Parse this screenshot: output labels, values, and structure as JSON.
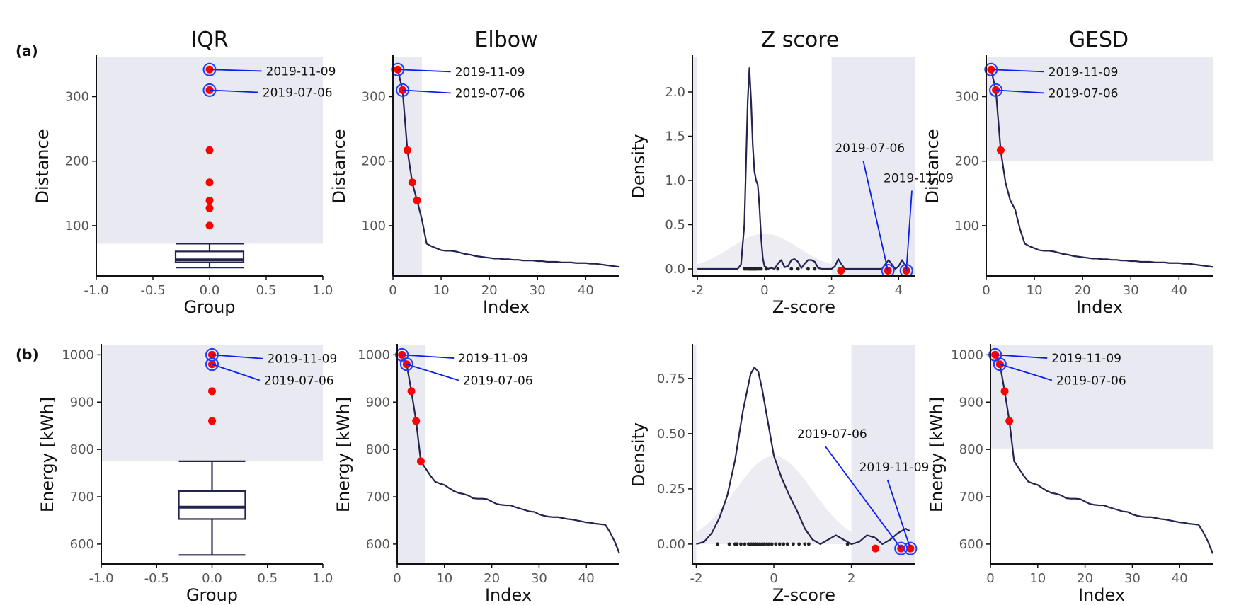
{
  "colors": {
    "shade": "#e9e9f1",
    "line": "#23234f",
    "point": "#ff0000",
    "highlight_ring": "#1f3cff",
    "leader": "#0a1ef0",
    "normal_fill": "#ececf2",
    "axis": "#111111",
    "tick_text": "#555555"
  },
  "column_titles": [
    "IQR",
    "Elbow",
    "Z score",
    "GESD"
  ],
  "row_labels": [
    "(a)",
    "(b)"
  ],
  "chart_data": [
    {
      "id": "a-iqr",
      "type": "box",
      "xlabel": "Group",
      "ylabel": "Distance",
      "xlim": [
        -1,
        1
      ],
      "ylim": [
        22,
        362
      ],
      "xticks": [
        -1.0,
        -0.5,
        0.0,
        0.5,
        1.0
      ],
      "xtick_labels": [
        "-1.0",
        "-0.5",
        "0.0",
        "0.5",
        "1.0"
      ],
      "yticks": [
        100,
        200,
        300
      ],
      "shade": [
        {
          "x": [
            -1,
            1
          ],
          "y": [
            72,
            362
          ]
        }
      ],
      "box": {
        "x": 0,
        "width": 0.6,
        "whisker_low": 35,
        "q1": 43,
        "median": 47,
        "q3": 60,
        "whisker_high": 72
      },
      "outliers": [
        342,
        310,
        217,
        167,
        139,
        127,
        100
      ],
      "highlights": [
        {
          "label": "2019-11-09",
          "y": 342,
          "text_x": 0.46,
          "text_y": 333
        },
        {
          "label": "2019-07-06",
          "y": 310,
          "text_x": 0.43,
          "text_y": 300
        }
      ]
    },
    {
      "id": "a-elbow",
      "type": "line",
      "xlabel": "Index",
      "ylabel": "Distance",
      "xlim": [
        0,
        47
      ],
      "ylim": [
        22,
        362
      ],
      "xticks": [
        0,
        10,
        20,
        30,
        40
      ],
      "yticks": [
        100,
        200,
        300
      ],
      "shade": [
        {
          "x": [
            0,
            6
          ],
          "y": [
            22,
            362
          ]
        }
      ],
      "x": [
        1,
        2,
        3,
        4,
        5,
        6,
        7,
        8,
        9,
        10,
        11,
        12,
        13,
        14,
        15,
        16,
        17,
        18,
        19,
        20,
        21,
        22,
        23,
        24,
        25,
        26,
        27,
        28,
        29,
        30,
        31,
        32,
        33,
        34,
        35,
        36,
        37,
        38,
        39,
        40,
        41,
        42,
        43,
        44,
        45,
        46,
        47
      ],
      "y": [
        342,
        310,
        217,
        167,
        139,
        110,
        72,
        68,
        65,
        62,
        61,
        61,
        60,
        58,
        56,
        55,
        53,
        52,
        51,
        50,
        49,
        49,
        48,
        48,
        47,
        47,
        46,
        46,
        46,
        45,
        45,
        44,
        44,
        44,
        43,
        43,
        43,
        42,
        42,
        42,
        41,
        41,
        40,
        39,
        38,
        37,
        36
      ],
      "points": [
        [
          1,
          342
        ],
        [
          2,
          310
        ],
        [
          3,
          217
        ],
        [
          4,
          167
        ],
        [
          5,
          139
        ]
      ],
      "highlights": [
        {
          "label": "2019-11-09",
          "x": 1,
          "y": 342,
          "text_x": 12,
          "text_y": 332
        },
        {
          "label": "2019-07-06",
          "x": 2,
          "y": 310,
          "text_x": 12,
          "text_y": 299
        }
      ]
    },
    {
      "id": "a-z",
      "type": "density",
      "xlabel": "Z-score",
      "ylabel": "Density",
      "xlim": [
        -2.15,
        4.5
      ],
      "ylim": [
        -0.08,
        2.4
      ],
      "xticks": [
        -2,
        0,
        2,
        4
      ],
      "yticks": [
        0.0,
        0.5,
        1.0,
        1.5,
        2.0
      ],
      "ytick_labels": [
        "0.0",
        "0.5",
        "1.0",
        "1.5",
        "2.0"
      ],
      "shade": [
        {
          "x": [
            -2.15,
            -2.0
          ],
          "y": [
            -0.08,
            2.4
          ]
        },
        {
          "x": [
            2.0,
            4.5
          ],
          "y": [
            -0.08,
            2.4
          ]
        }
      ],
      "density_x": [
        -2.0,
        -1.5,
        -1.0,
        -0.8,
        -0.7,
        -0.6,
        -0.55,
        -0.5,
        -0.45,
        -0.4,
        -0.35,
        -0.3,
        -0.25,
        -0.2,
        -0.15,
        -0.1,
        -0.05,
        0.0,
        0.05,
        0.1,
        0.2,
        0.3,
        0.4,
        0.5,
        0.6,
        0.7,
        0.8,
        0.9,
        1.0,
        1.1,
        1.2,
        1.3,
        1.4,
        1.5,
        1.6,
        1.7,
        1.8,
        1.9,
        2.0,
        2.1,
        2.2,
        2.3,
        2.4,
        2.5,
        3.0,
        3.5,
        3.6,
        3.7,
        3.8,
        3.9,
        4.0,
        4.1,
        4.2,
        4.3
      ],
      "density_y": [
        0.0,
        0.0,
        0.0,
        0.0,
        0.05,
        0.5,
        1.2,
        1.9,
        2.27,
        1.9,
        1.4,
        1.1,
        1.0,
        0.95,
        0.7,
        0.35,
        0.12,
        0.03,
        0.02,
        0.0,
        0.01,
        0.0,
        0.06,
        0.1,
        0.02,
        0.03,
        0.1,
        0.11,
        0.08,
        0.01,
        0.06,
        0.1,
        0.1,
        0.08,
        0.01,
        0.0,
        0.0,
        0.0,
        0.0,
        0.03,
        0.11,
        0.05,
        0.0,
        0.0,
        0.0,
        0.0,
        0.05,
        0.1,
        0.05,
        0.0,
        0.03,
        0.1,
        0.04,
        0.0
      ],
      "rug_x": [
        -0.6,
        -0.55,
        -0.5,
        -0.48,
        -0.45,
        -0.43,
        -0.4,
        -0.38,
        -0.36,
        -0.34,
        -0.32,
        -0.3,
        -0.28,
        -0.26,
        -0.24,
        -0.2,
        -0.15,
        -0.1,
        0.05,
        0.4,
        0.8,
        1.0,
        1.3,
        1.5
      ],
      "points": [
        [
          2.28,
          -0.02
        ],
        [
          3.68,
          -0.02
        ],
        [
          4.23,
          -0.02
        ]
      ],
      "highlights": [
        {
          "label": "2019-07-06",
          "x": 3.68,
          "y": -0.02,
          "text_x": 2.1,
          "text_y": 1.32
        },
        {
          "label": "2019-11-09",
          "x": 4.23,
          "y": -0.02,
          "text_x": 3.55,
          "text_y": 0.98
        }
      ]
    },
    {
      "id": "a-gesd",
      "type": "line",
      "xlabel": "Index",
      "ylabel": "Distance",
      "xlim": [
        0,
        47
      ],
      "ylim": [
        22,
        362
      ],
      "xticks": [
        0,
        10,
        20,
        30,
        40
      ],
      "yticks": [
        100,
        200,
        300
      ],
      "shade": [
        {
          "x": [
            0,
            47
          ],
          "y": [
            200,
            362
          ]
        }
      ],
      "x": [
        1,
        2,
        3,
        4,
        5,
        6,
        7,
        8,
        9,
        10,
        11,
        12,
        13,
        14,
        15,
        16,
        17,
        18,
        19,
        20,
        21,
        22,
        23,
        24,
        25,
        26,
        27,
        28,
        29,
        30,
        31,
        32,
        33,
        34,
        35,
        36,
        37,
        38,
        39,
        40,
        41,
        42,
        43,
        44,
        45,
        46,
        47
      ],
      "y": [
        342,
        310,
        217,
        167,
        139,
        125,
        95,
        72,
        68,
        65,
        62,
        61,
        61,
        60,
        58,
        56,
        55,
        53,
        52,
        51,
        50,
        49,
        49,
        48,
        48,
        47,
        47,
        46,
        46,
        45,
        45,
        44,
        44,
        44,
        43,
        43,
        43,
        42,
        42,
        42,
        41,
        41,
        40,
        39,
        38,
        37,
        36
      ],
      "points": [
        [
          1,
          342
        ],
        [
          2,
          310
        ],
        [
          3,
          217
        ]
      ],
      "highlights": [
        {
          "label": "2019-11-09",
          "x": 1,
          "y": 342,
          "text_x": 12,
          "text_y": 332
        },
        {
          "label": "2019-07-06",
          "x": 2,
          "y": 310,
          "text_x": 12,
          "text_y": 299
        }
      ]
    },
    {
      "id": "b-iqr",
      "type": "box",
      "xlabel": "Group",
      "ylabel": "Energy [kWh]",
      "xlim": [
        -1,
        1
      ],
      "ylim": [
        558,
        1020
      ],
      "xticks": [
        -1.0,
        -0.5,
        0.0,
        0.5,
        1.0
      ],
      "xtick_labels": [
        "-1.0",
        "-0.5",
        "0.0",
        "0.5",
        "1.0"
      ],
      "yticks": [
        600,
        700,
        800,
        900,
        1000
      ],
      "shade": [
        {
          "x": [
            -1,
            1
          ],
          "y": [
            775,
            1020
          ]
        }
      ],
      "box": {
        "x": 0,
        "width": 0.6,
        "whisker_low": 577,
        "q1": 653,
        "median": 678,
        "q3": 712,
        "whisker_high": 775
      },
      "outliers": [
        1000,
        980,
        923,
        860
      ],
      "highlights": [
        {
          "label": "2019-11-09",
          "y": 1000,
          "text_x": 0.46,
          "text_y": 983
        },
        {
          "label": "2019-07-06",
          "y": 980,
          "text_x": 0.43,
          "text_y": 937
        }
      ]
    },
    {
      "id": "b-elbow",
      "type": "line",
      "xlabel": "Index",
      "ylabel": "Energy [kWh]",
      "xlim": [
        0,
        47
      ],
      "ylim": [
        558,
        1020
      ],
      "xticks": [
        0,
        10,
        20,
        30,
        40
      ],
      "yticks": [
        600,
        700,
        800,
        900,
        1000
      ],
      "shade": [
        {
          "x": [
            0,
            6
          ],
          "y": [
            558,
            1020
          ]
        }
      ],
      "x": [
        1,
        2,
        3,
        4,
        5,
        6,
        7,
        8,
        9,
        10,
        11,
        12,
        13,
        14,
        15,
        16,
        17,
        18,
        19,
        20,
        21,
        22,
        23,
        24,
        25,
        26,
        27,
        28,
        29,
        30,
        31,
        32,
        33,
        34,
        35,
        36,
        37,
        38,
        39,
        40,
        41,
        42,
        43,
        44,
        45,
        46,
        47
      ],
      "y": [
        1000,
        980,
        923,
        860,
        775,
        760,
        745,
        732,
        728,
        725,
        718,
        712,
        708,
        706,
        703,
        697,
        696,
        696,
        695,
        690,
        685,
        683,
        682,
        682,
        678,
        675,
        672,
        669,
        668,
        663,
        660,
        658,
        657,
        657,
        655,
        653,
        652,
        650,
        648,
        646,
        645,
        643,
        642,
        641,
        625,
        605,
        580
      ],
      "points": [
        [
          1,
          1000
        ],
        [
          2,
          980
        ],
        [
          3,
          923
        ],
        [
          4,
          860
        ],
        [
          5,
          775
        ]
      ],
      "highlights": [
        {
          "label": "2019-11-09",
          "x": 1,
          "y": 1000,
          "text_x": 12,
          "text_y": 984
        },
        {
          "label": "2019-07-06",
          "x": 2,
          "y": 980,
          "text_x": 13,
          "text_y": 937
        }
      ]
    },
    {
      "id": "b-z",
      "type": "density",
      "xlabel": "Z-score",
      "ylabel": "Density",
      "xlim": [
        -2.1,
        3.65
      ],
      "ylim": [
        -0.09,
        0.9
      ],
      "xticks": [
        -2,
        0,
        2
      ],
      "yticks": [
        0.0,
        0.25,
        0.5,
        0.75
      ],
      "ytick_labels": [
        "0.00",
        "0.25",
        "0.50",
        "0.75"
      ],
      "shade": [
        {
          "x": [
            -2.1,
            -2.0
          ],
          "y": [
            -0.09,
            0.9
          ]
        },
        {
          "x": [
            2.0,
            3.65
          ],
          "y": [
            -0.09,
            0.9
          ]
        }
      ],
      "density_x": [
        -2.0,
        -1.8,
        -1.6,
        -1.4,
        -1.2,
        -1.0,
        -0.8,
        -0.6,
        -0.5,
        -0.4,
        -0.3,
        -0.2,
        -0.1,
        0.0,
        0.2,
        0.4,
        0.6,
        0.8,
        1.0,
        1.2,
        1.4,
        1.6,
        1.8,
        2.0,
        2.2,
        2.4,
        2.6,
        2.8,
        3.0,
        3.2,
        3.4,
        3.5
      ],
      "density_y": [
        0.0,
        0.01,
        0.05,
        0.12,
        0.22,
        0.38,
        0.6,
        0.77,
        0.8,
        0.78,
        0.7,
        0.6,
        0.5,
        0.4,
        0.3,
        0.22,
        0.15,
        0.07,
        0.02,
        0.0,
        0.02,
        0.04,
        0.02,
        0.0,
        0.01,
        0.04,
        0.03,
        0.0,
        0.02,
        0.05,
        0.07,
        0.06
      ],
      "rug_x": [
        -1.45,
        -1.15,
        -1.0,
        -0.95,
        -0.85,
        -0.75,
        -0.65,
        -0.58,
        -0.52,
        -0.47,
        -0.42,
        -0.36,
        -0.3,
        -0.25,
        -0.18,
        -0.12,
        -0.05,
        0.05,
        0.15,
        0.25,
        0.35,
        0.5,
        0.65,
        0.8,
        0.9,
        1.9
      ],
      "points": [
        [
          2.62,
          -0.02
        ],
        [
          3.28,
          -0.02
        ],
        [
          3.52,
          -0.02
        ]
      ],
      "highlights": [
        {
          "label": "2019-07-06",
          "x": 3.28,
          "y": -0.02,
          "text_x": 0.6,
          "text_y": 0.48
        },
        {
          "label": "2019-11-09",
          "x": 3.52,
          "y": -0.02,
          "text_x": 2.2,
          "text_y": 0.33
        }
      ]
    },
    {
      "id": "b-gesd",
      "type": "line",
      "xlabel": "Index",
      "ylabel": "Energy [kWh]",
      "xlim": [
        0,
        47
      ],
      "ylim": [
        558,
        1020
      ],
      "xticks": [
        0,
        10,
        20,
        30,
        40
      ],
      "yticks": [
        600,
        700,
        800,
        900,
        1000
      ],
      "shade": [
        {
          "x": [
            0,
            47
          ],
          "y": [
            800,
            1020
          ]
        }
      ],
      "x": [
        1,
        2,
        3,
        4,
        5,
        6,
        7,
        8,
        9,
        10,
        11,
        12,
        13,
        14,
        15,
        16,
        17,
        18,
        19,
        20,
        21,
        22,
        23,
        24,
        25,
        26,
        27,
        28,
        29,
        30,
        31,
        32,
        33,
        34,
        35,
        36,
        37,
        38,
        39,
        40,
        41,
        42,
        43,
        44,
        45,
        46,
        47
      ],
      "y": [
        1000,
        980,
        923,
        860,
        775,
        760,
        745,
        732,
        728,
        725,
        718,
        712,
        708,
        706,
        703,
        697,
        696,
        696,
        695,
        690,
        685,
        683,
        682,
        682,
        678,
        675,
        672,
        669,
        668,
        663,
        660,
        658,
        657,
        657,
        655,
        653,
        652,
        650,
        648,
        646,
        645,
        643,
        642,
        641,
        625,
        605,
        580
      ],
      "points": [
        [
          1,
          1000
        ],
        [
          2,
          980
        ],
        [
          3,
          923
        ],
        [
          4,
          860
        ]
      ],
      "highlights": [
        {
          "label": "2019-11-09",
          "x": 1,
          "y": 1000,
          "text_x": 12,
          "text_y": 984
        },
        {
          "label": "2019-07-06",
          "x": 2,
          "y": 980,
          "text_x": 13,
          "text_y": 937
        }
      ]
    }
  ]
}
